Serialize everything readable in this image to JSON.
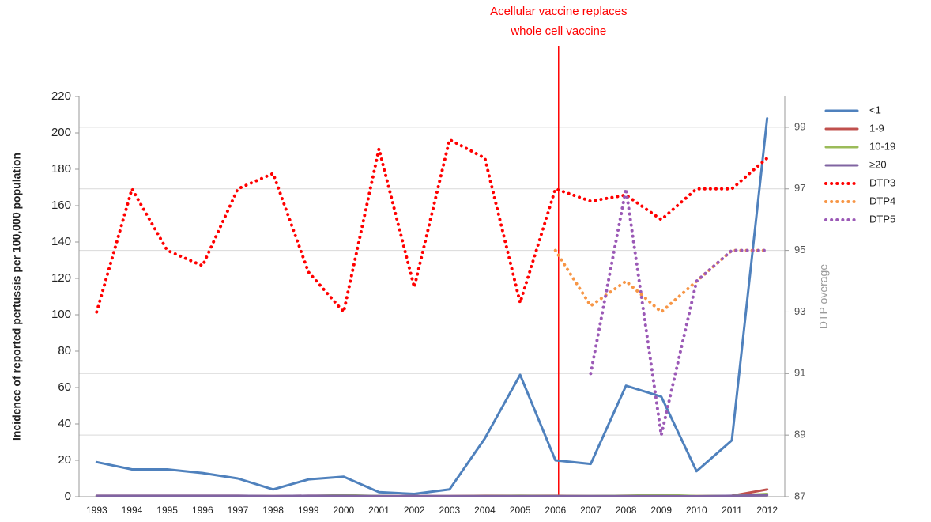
{
  "chart_data": {
    "type": "line",
    "annotation": {
      "lines": [
        "Acellular vaccine replaces",
        "whole cell vaccine"
      ],
      "category": "2006",
      "color": "#ff0000"
    },
    "ylabel": "Incidence of reported pertussis per 100,000 population",
    "y2label": "DTP overage",
    "categories": [
      "1993",
      "1994",
      "1995",
      "1996",
      "1997",
      "1998",
      "1999",
      "2000",
      "2001",
      "2002",
      "2003",
      "2004",
      "2005",
      "2006",
      "2007",
      "2008",
      "2009",
      "2010",
      "2011",
      "2012"
    ],
    "ylim": [
      0,
      220
    ],
    "yticks": [
      0,
      20,
      40,
      60,
      80,
      100,
      120,
      140,
      160,
      180,
      200,
      220
    ],
    "y2lim": [
      87,
      100
    ],
    "y2ticks": [
      87,
      89,
      91,
      93,
      95,
      97,
      99
    ],
    "grid": "y2",
    "series": [
      {
        "name": "<1",
        "color": "#4f81bd",
        "dash": "solid",
        "values": [
          19,
          15,
          15,
          13,
          10,
          4,
          9.5,
          11,
          2.5,
          1.5,
          4,
          32,
          67,
          20,
          18,
          61,
          55,
          14,
          31,
          208
        ]
      },
      {
        "name": "1-9",
        "color": "#c0504d",
        "dash": "solid",
        "values": [
          0.5,
          0.5,
          0.5,
          0.5,
          0.5,
          0.3,
          0.5,
          0.5,
          0.3,
          0.3,
          0.3,
          0.5,
          0.5,
          0.5,
          0.3,
          0.5,
          0.5,
          0.3,
          0.5,
          4
        ]
      },
      {
        "name": "10-19",
        "color": "#9bbb59",
        "dash": "solid",
        "values": [
          0.3,
          0.3,
          0.3,
          0.3,
          0.3,
          0.2,
          0.3,
          0.8,
          0.3,
          0.2,
          0.2,
          0.3,
          0.5,
          0.3,
          0.3,
          0.5,
          1,
          0.3,
          0.5,
          1.5
        ]
      },
      {
        "name": "≥20",
        "color": "#8064a2",
        "dash": "solid",
        "values": [
          0.5,
          0.5,
          0.5,
          0.5,
          0.5,
          0.3,
          0.5,
          0.5,
          0.3,
          0.3,
          0.3,
          0.3,
          0.3,
          0.3,
          0.3,
          0.3,
          0.3,
          0.2,
          0.5,
          0.8
        ]
      },
      {
        "name": "DTP3",
        "color": "#ff0000",
        "dash": "dot",
        "axis": "y2",
        "values": [
          93,
          97,
          95,
          94.5,
          97,
          97.5,
          94.3,
          93,
          98.3,
          93.8,
          98.6,
          98,
          93.3,
          97,
          96.6,
          96.8,
          96,
          97,
          97,
          98
        ]
      },
      {
        "name": "DTP4",
        "color": "#f79646",
        "dash": "dot",
        "axis": "y2",
        "values": [
          null,
          null,
          null,
          null,
          null,
          null,
          null,
          null,
          null,
          null,
          null,
          null,
          null,
          95,
          93.2,
          94,
          93,
          94,
          95,
          95
        ]
      },
      {
        "name": "DTP5",
        "color": "#9b59b6",
        "dash": "dot",
        "axis": "y2",
        "values": [
          null,
          null,
          null,
          null,
          null,
          null,
          null,
          null,
          null,
          null,
          null,
          null,
          null,
          null,
          91,
          97,
          89,
          94,
          95,
          95
        ]
      }
    ]
  }
}
